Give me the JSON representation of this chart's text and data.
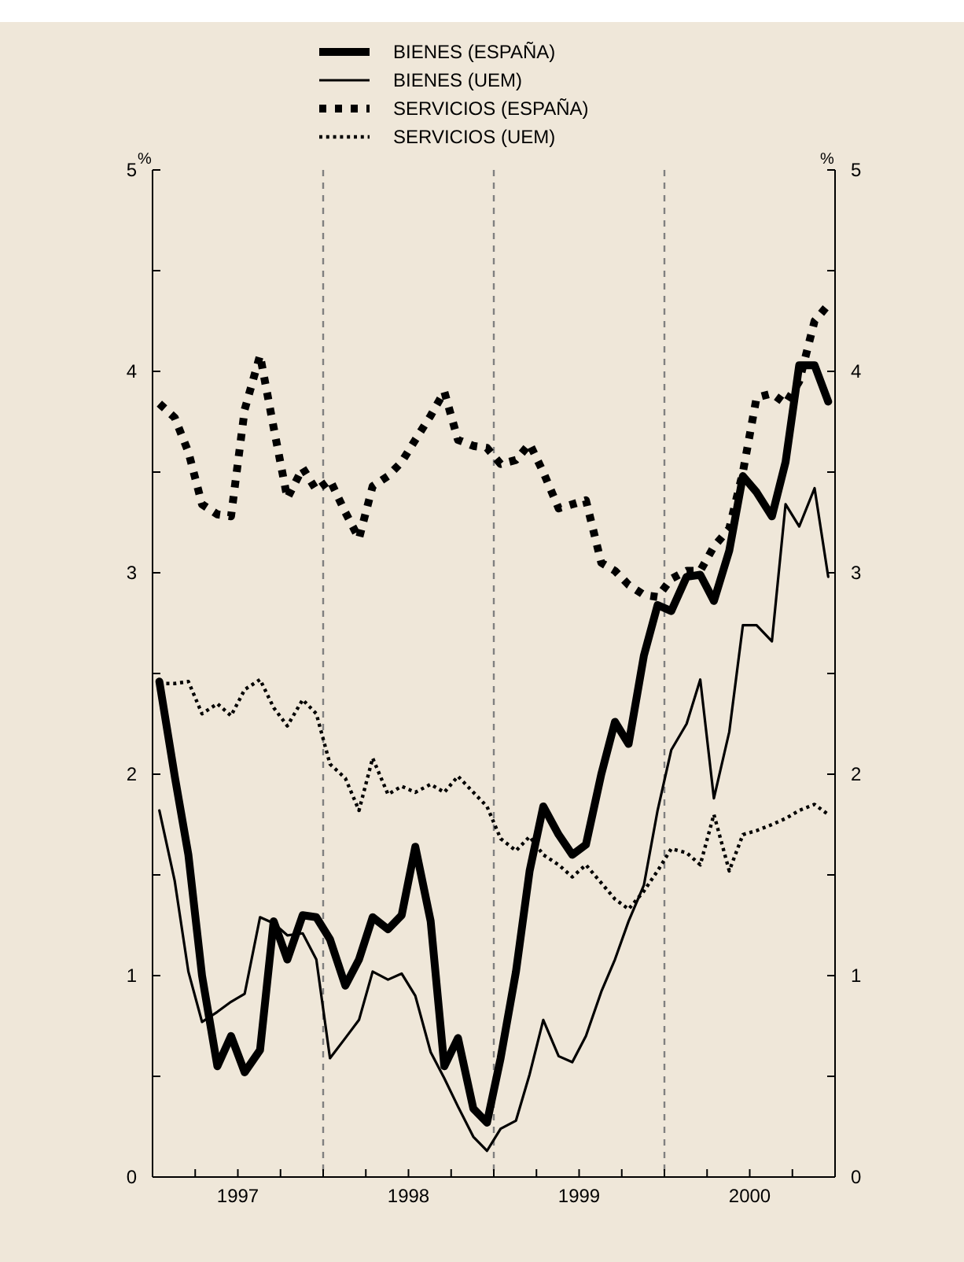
{
  "chart_data": {
    "type": "line",
    "ylabel": "%",
    "y2label": "%",
    "legend": "top",
    "x": [
      1997.04,
      1997.13,
      1997.21,
      1997.29,
      1997.38,
      1997.46,
      1997.54,
      1997.63,
      1997.71,
      1997.79,
      1997.88,
      1997.96,
      1998.04,
      1998.13,
      1998.21,
      1998.29,
      1998.38,
      1998.46,
      1998.54,
      1998.63,
      1998.71,
      1998.79,
      1998.88,
      1998.96,
      1999.04,
      1999.13,
      1999.21,
      1999.29,
      1999.38,
      1999.46,
      1999.54,
      1999.63,
      1999.71,
      1999.79,
      1999.88,
      1999.96,
      2000.04,
      2000.13,
      2000.21,
      2000.29,
      2000.38,
      2000.46,
      2000.54,
      2000.63,
      2000.71,
      2000.79,
      2000.88,
      2000.96
    ],
    "series": [
      {
        "name": "BIENES (ESPAÑA)",
        "color": "#000000",
        "line_style": "solid",
        "values": [
          2.46,
          1.99,
          1.6,
          1.0,
          0.55,
          0.7,
          0.52,
          0.63,
          1.27,
          1.08,
          1.3,
          1.29,
          1.18,
          0.95,
          1.08,
          1.29,
          1.23,
          1.3,
          1.64,
          1.27,
          0.55,
          0.69,
          0.34,
          0.27,
          0.59,
          1.02,
          1.52,
          1.84,
          1.7,
          1.6,
          1.65,
          2.0,
          2.26,
          2.15,
          2.59,
          2.84,
          2.81,
          2.98,
          2.99,
          2.86,
          3.11,
          3.48,
          3.4,
          3.28,
          3.55,
          4.03,
          4.03,
          3.85
        ]
      },
      {
        "name": "BIENES (UEM)",
        "color": "#000000",
        "line_style": "solid",
        "values": [
          1.82,
          1.47,
          1.02,
          0.77,
          0.82,
          0.87,
          0.91,
          1.29,
          1.26,
          1.2,
          1.21,
          1.08,
          0.59,
          0.69,
          0.78,
          1.02,
          0.98,
          1.01,
          0.9,
          0.62,
          0.49,
          0.35,
          0.2,
          0.13,
          0.24,
          0.28,
          0.51,
          0.78,
          0.6,
          0.57,
          0.7,
          0.92,
          1.08,
          1.27,
          1.45,
          1.82,
          2.12,
          2.25,
          2.47,
          1.88,
          2.21,
          2.74,
          2.74,
          2.66,
          3.34,
          3.23,
          3.42,
          2.98
        ]
      },
      {
        "name": "SERVICIOS (ESPAÑA)",
        "color": "#000000",
        "line_style": "dotted",
        "values": [
          3.84,
          3.77,
          3.6,
          3.34,
          3.29,
          3.28,
          3.81,
          4.08,
          3.72,
          3.37,
          3.52,
          3.41,
          3.46,
          3.3,
          3.17,
          3.43,
          3.48,
          3.55,
          3.66,
          3.78,
          3.9,
          3.66,
          3.63,
          3.62,
          3.54,
          3.56,
          3.64,
          3.5,
          3.32,
          3.34,
          3.36,
          3.05,
          3.01,
          2.94,
          2.89,
          2.88,
          2.97,
          3.01,
          3.01,
          3.13,
          3.22,
          3.5,
          3.87,
          3.89,
          3.84,
          3.95,
          4.25,
          4.33
        ]
      },
      {
        "name": "SERVICIOS (UEM)",
        "color": "#000000",
        "line_style": "dotted",
        "values": [
          2.45,
          2.45,
          2.46,
          2.3,
          2.35,
          2.29,
          2.42,
          2.47,
          2.33,
          2.24,
          2.37,
          2.3,
          2.05,
          1.98,
          1.82,
          2.08,
          1.9,
          1.94,
          1.91,
          1.95,
          1.91,
          1.99,
          1.91,
          1.84,
          1.68,
          1.62,
          1.69,
          1.6,
          1.55,
          1.49,
          1.55,
          1.46,
          1.38,
          1.33,
          1.42,
          1.52,
          1.63,
          1.61,
          1.55,
          1.8,
          1.52,
          1.7,
          1.72,
          1.75,
          1.78,
          1.82,
          1.85,
          1.8
        ]
      }
    ],
    "xlim": [
      1997,
      2001
    ],
    "xticks": [
      {
        "value": 1997,
        "label": null
      },
      {
        "value": 1997.25,
        "label": null
      },
      {
        "value": 1997.5,
        "label": "1997"
      },
      {
        "value": 1997.75,
        "label": null
      },
      {
        "value": 1998,
        "label": null
      },
      {
        "value": 1998.25,
        "label": null
      },
      {
        "value": 1998.5,
        "label": "1998"
      },
      {
        "value": 1998.75,
        "label": null
      },
      {
        "value": 1999,
        "label": null
      },
      {
        "value": 1999.25,
        "label": null
      },
      {
        "value": 1999.5,
        "label": "1999"
      },
      {
        "value": 1999.75,
        "label": null
      },
      {
        "value": 2000,
        "label": null
      },
      {
        "value": 2000.25,
        "label": null
      },
      {
        "value": 2000.5,
        "label": "2000"
      },
      {
        "value": 2000.75,
        "label": null
      },
      {
        "value": 2001,
        "label": null
      }
    ],
    "ylim": [
      0,
      5
    ],
    "yticks": [
      0,
      {
        "value": 0.5,
        "label": null
      },
      1,
      {
        "value": 1.5,
        "label": null
      },
      2,
      {
        "value": 2.5,
        "label": null
      },
      3,
      {
        "value": 3.5,
        "label": null
      },
      4,
      {
        "value": 4.5,
        "label": null
      },
      5
    ],
    "y2lim": [
      0,
      5
    ],
    "y2ticks": [
      0,
      {
        "value": 0.5,
        "label": null
      },
      1,
      {
        "value": 1.5,
        "label": null
      },
      2,
      {
        "value": 2.5,
        "label": null
      },
      3,
      {
        "value": 3.5,
        "label": null
      },
      4,
      {
        "value": 4.5,
        "label": null
      },
      5
    ],
    "ref_lines": [
      {
        "axis": "x",
        "value": 1998,
        "color": "#808080",
        "line_style": "dashed"
      },
      {
        "axis": "x",
        "value": 1999,
        "color": "#808080",
        "line_style": "dashed"
      },
      {
        "axis": "x",
        "value": 2000,
        "color": "#808080",
        "line_style": "dashed"
      }
    ],
    "grid": false
  }
}
